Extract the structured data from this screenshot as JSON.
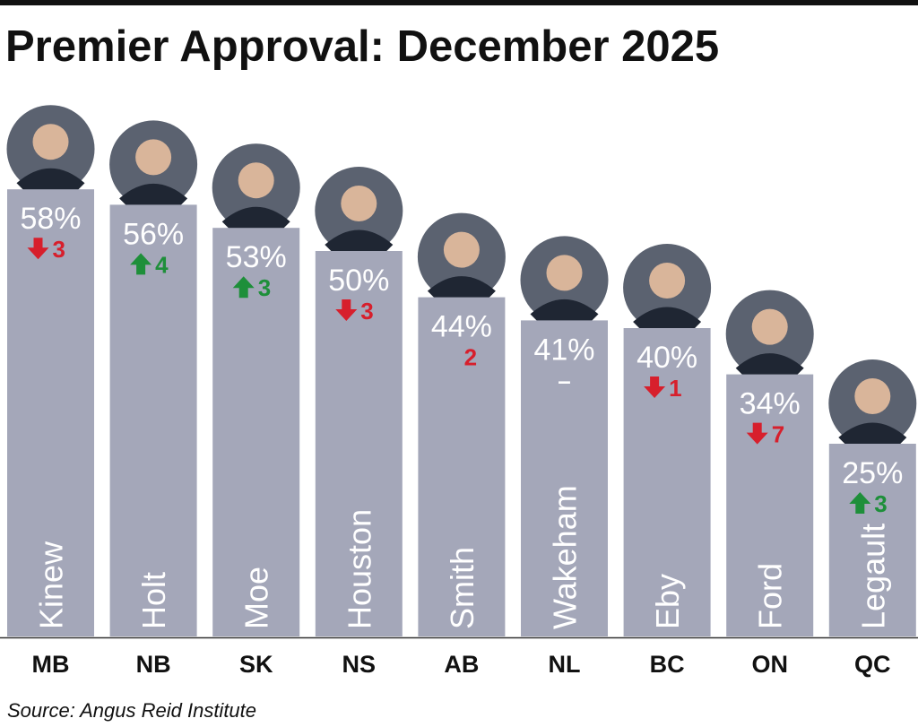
{
  "title": "Premier Approval: December 2025",
  "source": "Source: Angus Reid Institute",
  "colors": {
    "bar": "#a4a7b9",
    "up": "#1e8f3a",
    "down": "#d71f2c",
    "text": "#ffffff"
  },
  "chart_data": {
    "type": "bar",
    "title": "Premier Approval: December 2025",
    "categories": [
      "MB",
      "NB",
      "SK",
      "NS",
      "AB",
      "NL",
      "BC",
      "ON",
      "QC"
    ],
    "names": [
      "Kinew",
      "Holt",
      "Moe",
      "Houston",
      "Smith",
      "Wakeham",
      "Eby",
      "Ford",
      "Legault"
    ],
    "values": [
      58,
      56,
      53,
      50,
      44,
      41,
      40,
      34,
      25
    ],
    "value_labels": [
      "58%",
      "56%",
      "53%",
      "50%",
      "44%",
      "41%",
      "40%",
      "34%",
      "25%"
    ],
    "changes": [
      {
        "label": "3",
        "direction": "down"
      },
      {
        "label": "4",
        "direction": "up"
      },
      {
        "label": "3",
        "direction": "up"
      },
      {
        "label": "3",
        "direction": "down"
      },
      {
        "label": "2",
        "direction": "down-no-arrow"
      },
      {
        "label": "–",
        "direction": "none"
      },
      {
        "label": "1",
        "direction": "down"
      },
      {
        "label": "7",
        "direction": "down"
      },
      {
        "label": "3",
        "direction": "up"
      }
    ],
    "ylim": [
      0,
      60
    ],
    "grid": false,
    "legend": "none",
    "photos": "premier portrait above each bar"
  }
}
